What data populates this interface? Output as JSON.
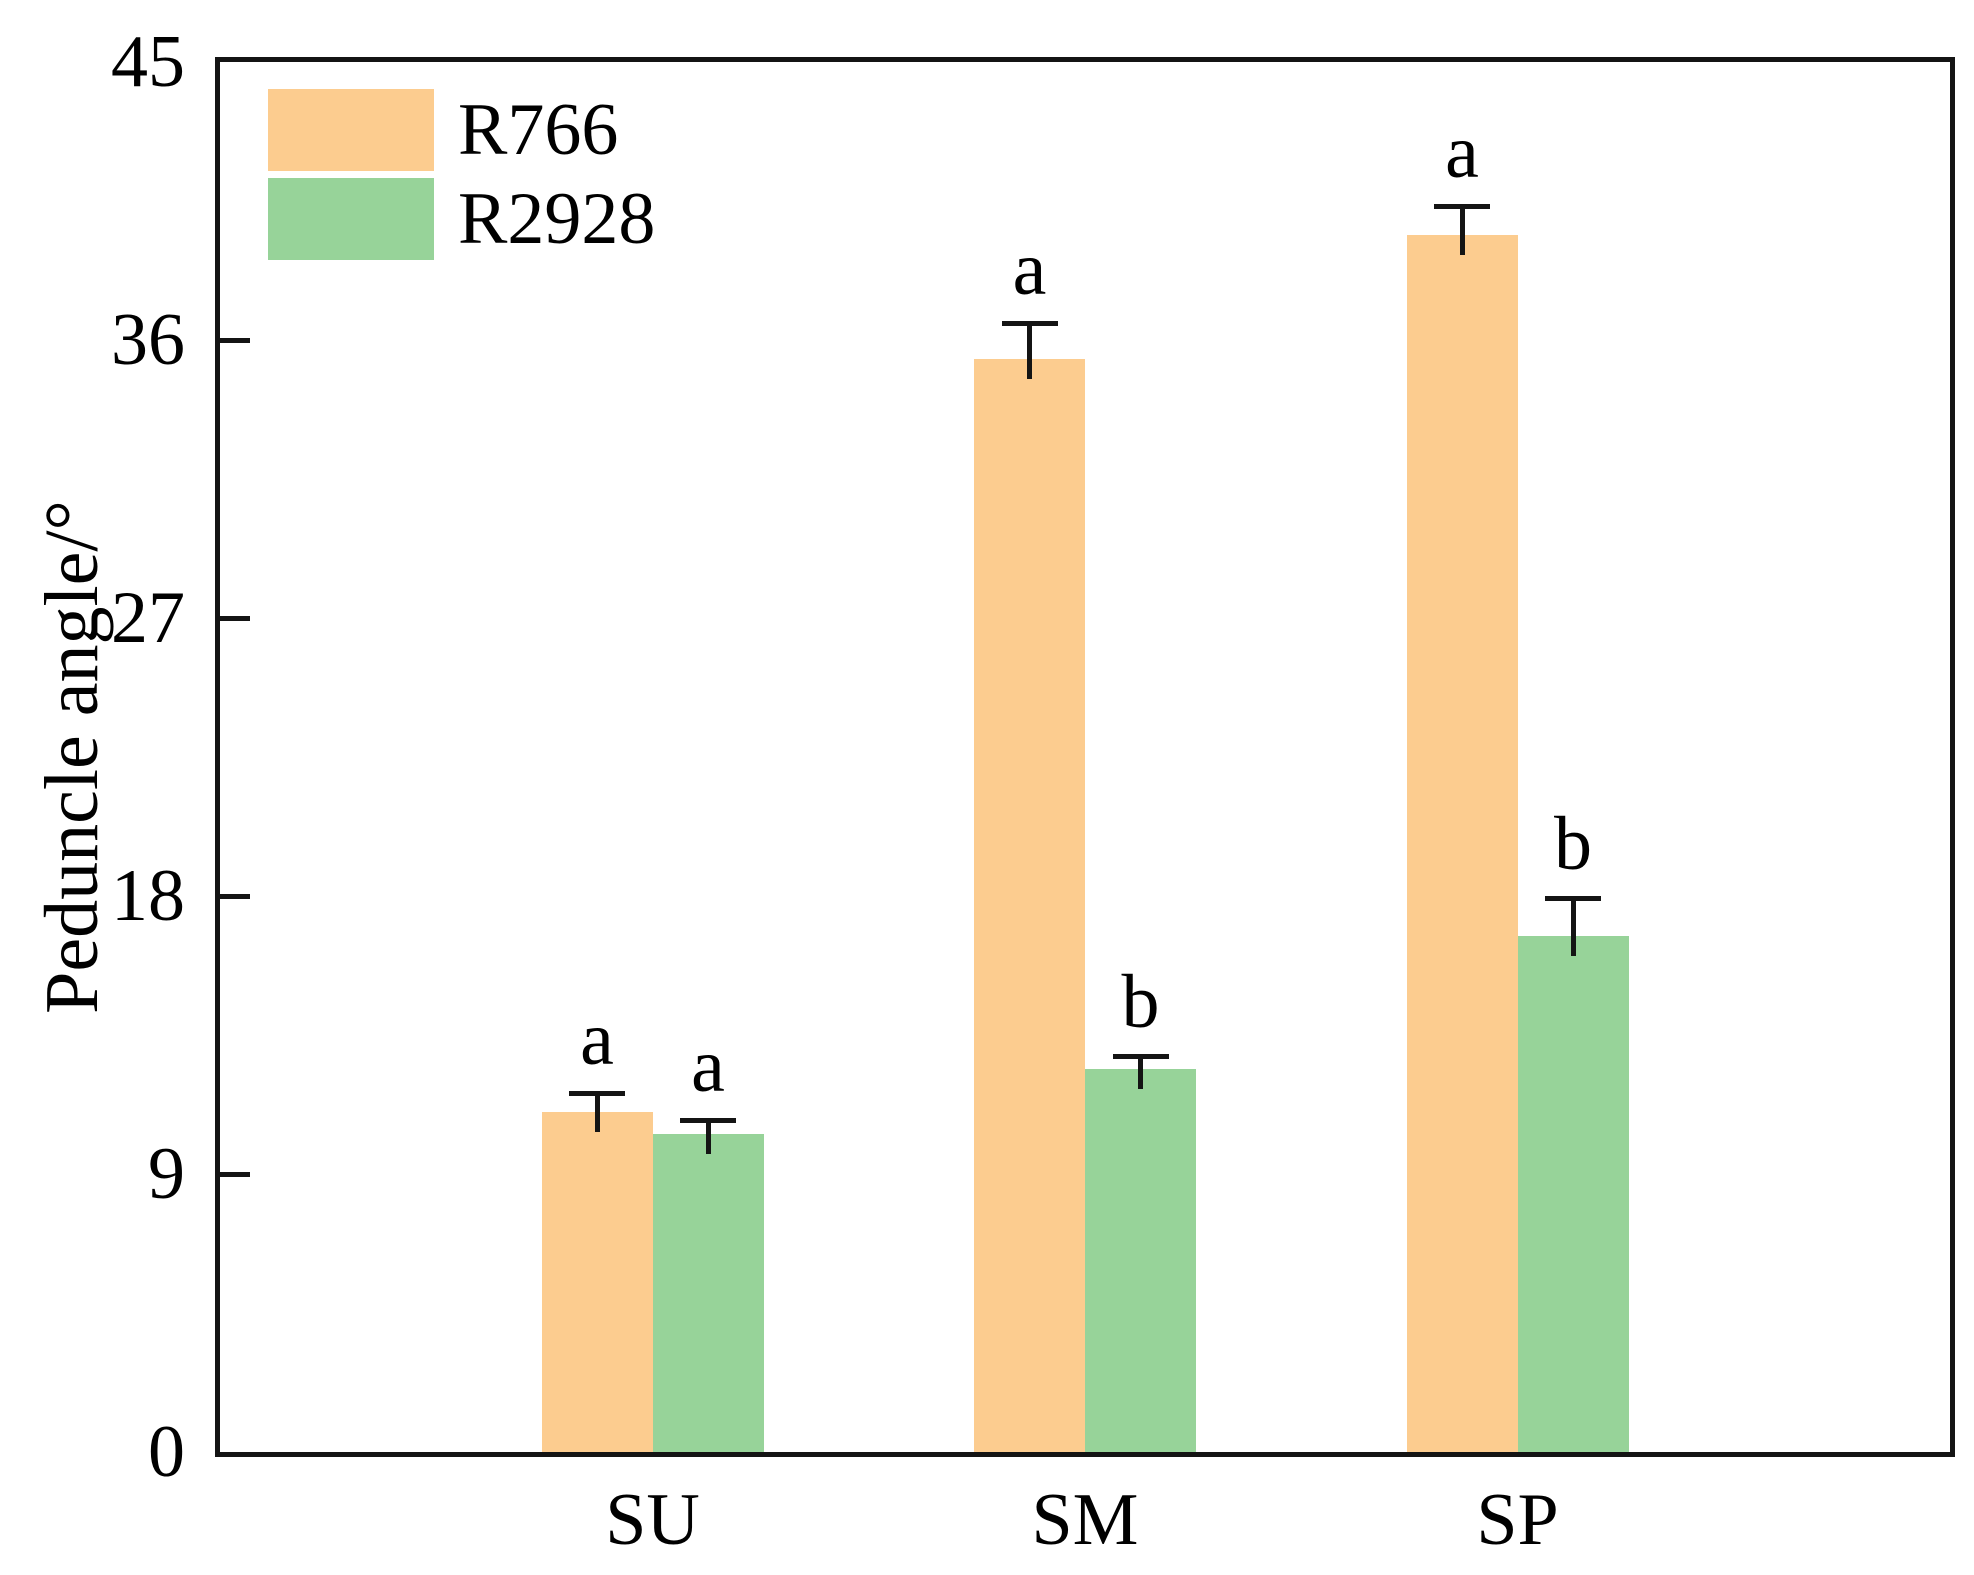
{
  "figure": {
    "background_color": "#ffffff",
    "frame_color": "#141414",
    "text_color": "#000000"
  },
  "y_axis": {
    "title": "Peduncle angle/°",
    "tick_labels": [
      "0",
      "9",
      "18",
      "27",
      "36",
      "45"
    ]
  },
  "x_axis": {
    "tick_labels": [
      "SU",
      "SM",
      "SP"
    ]
  },
  "legend": {
    "position": "upper-left",
    "entries": [
      {
        "label": "R766",
        "color": "#FCCC8F"
      },
      {
        "label": "R2928",
        "color": "#97D399"
      }
    ]
  },
  "chart_data": {
    "type": "bar",
    "title": "",
    "xlabel": "",
    "ylabel": "Peduncle angle/°",
    "categories": [
      "SU",
      "SM",
      "SP"
    ],
    "series": [
      {
        "name": "R766",
        "color": "#FCCC8F",
        "values": [
          11.0,
          35.4,
          39.4
        ],
        "errors": [
          0.7,
          1.2,
          1.0
        ],
        "sig_letters": [
          "a",
          "a",
          "a"
        ]
      },
      {
        "name": "R2928",
        "color": "#97D399",
        "values": [
          10.3,
          12.4,
          16.7
        ],
        "errors": [
          0.5,
          0.5,
          1.3
        ],
        "sig_letters": [
          "a",
          "b",
          "b"
        ]
      }
    ],
    "ylim": [
      0,
      45
    ],
    "yticks": [
      0,
      9,
      18,
      27,
      36,
      45
    ],
    "grid": false,
    "error_bars": true,
    "legend_position": "upper-left"
  }
}
